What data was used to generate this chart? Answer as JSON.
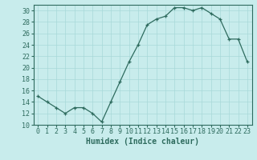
{
  "x": [
    0,
    1,
    2,
    3,
    4,
    5,
    6,
    7,
    8,
    9,
    10,
    11,
    12,
    13,
    14,
    15,
    16,
    17,
    18,
    19,
    20,
    21,
    22,
    23
  ],
  "y": [
    15,
    14,
    13,
    12,
    13,
    13,
    12,
    10.5,
    14,
    17.5,
    21,
    24,
    27.5,
    28.5,
    29,
    30.5,
    30.5,
    30,
    30.5,
    29.5,
    28.5,
    25,
    25,
    21
  ],
  "line_color": "#2E6B5E",
  "marker": "+",
  "marker_size": 3,
  "bg_color": "#C8ECEC",
  "grid_color": "#A8D8D8",
  "xlabel": "Humidex (Indice chaleur)",
  "xlabel_fontsize": 7,
  "tick_fontsize": 6,
  "ylim": [
    10,
    31
  ],
  "yticks": [
    10,
    12,
    14,
    16,
    18,
    20,
    22,
    24,
    26,
    28,
    30
  ],
  "xlim": [
    -0.5,
    23.5
  ],
  "xticks": [
    0,
    1,
    2,
    3,
    4,
    5,
    6,
    7,
    8,
    9,
    10,
    11,
    12,
    13,
    14,
    15,
    16,
    17,
    18,
    19,
    20,
    21,
    22,
    23
  ]
}
